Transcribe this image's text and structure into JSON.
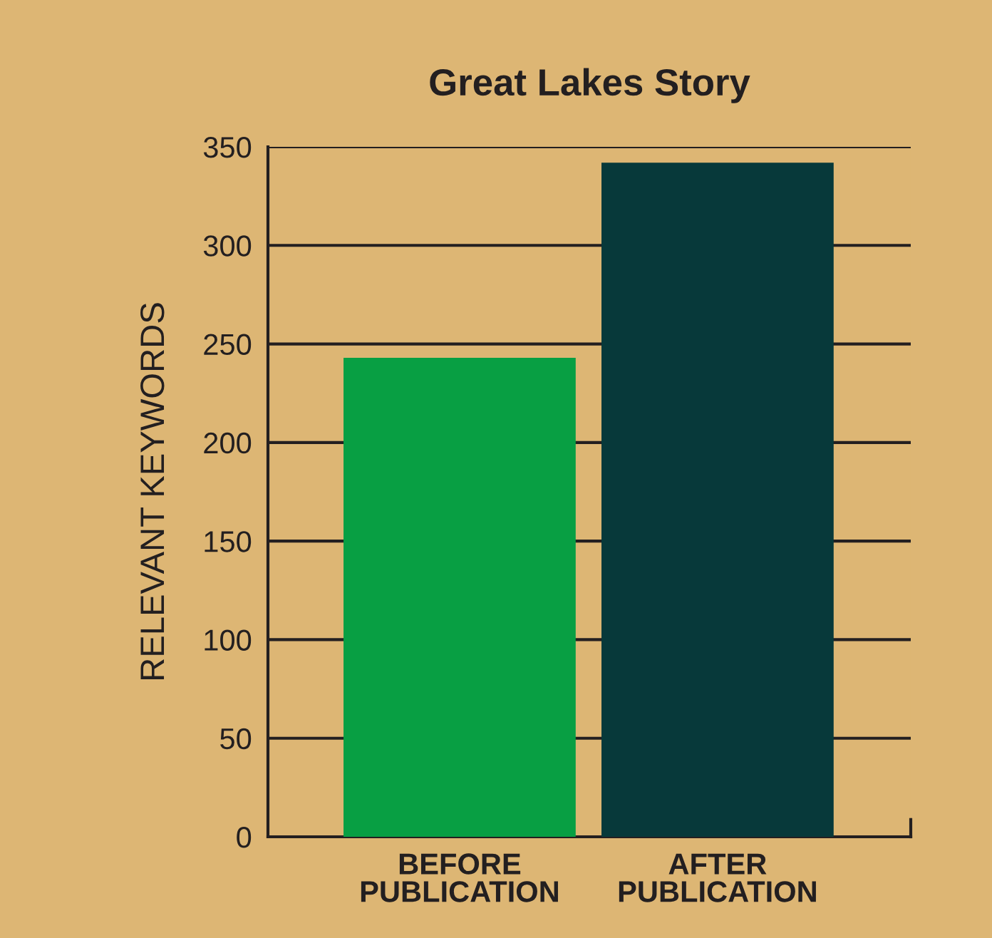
{
  "chart_data": {
    "type": "bar",
    "title": "Great Lakes Story",
    "ylabel": "RELEVANT KEYWORDS",
    "categories": [
      "BEFORE\nPUBLICATION",
      "AFTER\nPUBLICATION"
    ],
    "values": [
      243,
      342
    ],
    "colors": [
      "#089f43",
      "#07393a"
    ],
    "ylim": [
      0,
      350
    ],
    "yticks": [
      0,
      50,
      100,
      150,
      200,
      250,
      300,
      350
    ],
    "grid": "y"
  }
}
